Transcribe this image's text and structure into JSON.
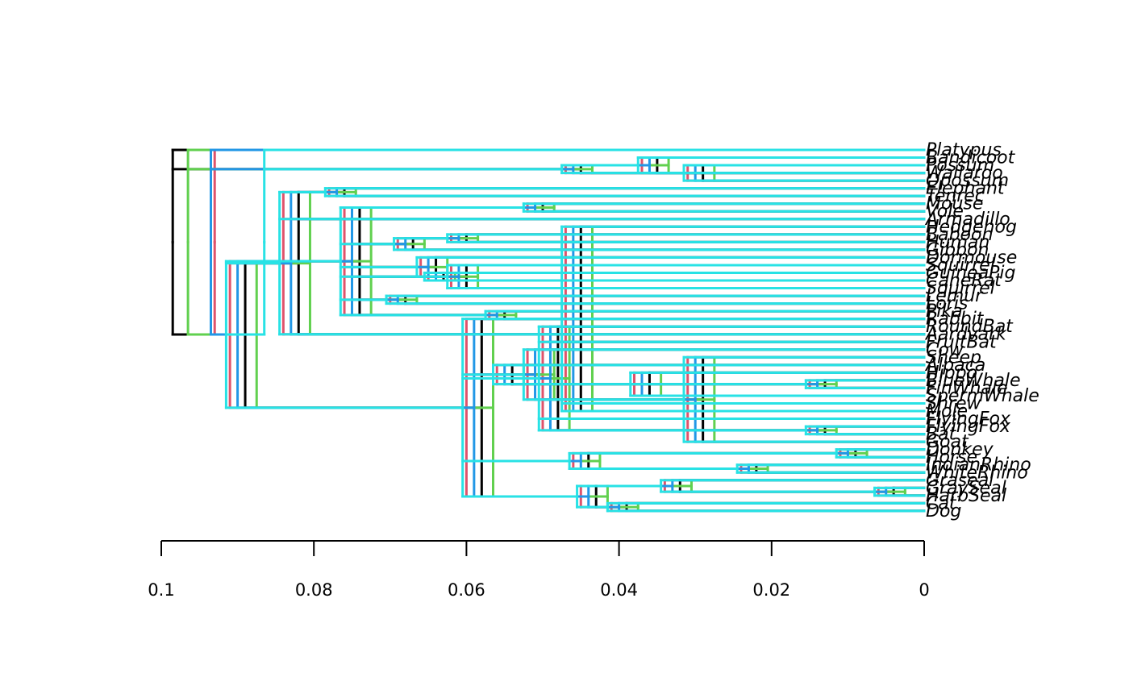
{
  "chart_data": {
    "type": "phylogram-overlay",
    "orientation": "right",
    "xaxis": {
      "domain": [
        0.1,
        0.0
      ],
      "ticks": [
        0.1,
        0.08,
        0.06,
        0.04,
        0.02,
        0
      ],
      "tick_labels": [
        "0.1",
        "0.08",
        "0.06",
        "0.04",
        "0.02",
        "0"
      ]
    },
    "tips": [
      "Platypus",
      "Bandicoot",
      "Possum",
      "Wallaroo",
      "Opossum",
      "Elephant",
      "Tenrec",
      "Mouse",
      "Vole",
      "Armadillo",
      "Hedgehog",
      "Baboon",
      "Human",
      "Gibbon",
      "Dormouse",
      "Squirrel",
      "GuineaPig",
      "CaneRat",
      "Squirrel",
      "Lemur",
      "Loris",
      "Pika",
      "Rabbit",
      "RoundBat",
      "Aardvark",
      "FruitBat",
      "Cow",
      "Sheep",
      "Alpaca",
      "Hippo",
      "BlueWhale",
      "FinWhale",
      "SpermWhale",
      "Shrew",
      "Mole",
      "FlyingFox",
      "FlyingFox",
      "Bat",
      "Goat",
      "Donkey",
      "Horse",
      "IndianRhino",
      "WhiteRhino",
      "Graseal",
      "GraySeal",
      "HarbSeal",
      "Cat",
      "Dog"
    ],
    "trees": [
      {
        "color": "#000000",
        "root_height": 0.0985
      },
      {
        "color": "#DF536B",
        "root_height": 0.093
      },
      {
        "color": "#61D04F",
        "root_height": 0.0965
      },
      {
        "color": "#2297E6",
        "root_height": 0.0935
      },
      {
        "color": "#28E2E5",
        "root_height": 0.0865
      }
    ],
    "nodes": {
      "b_marsupials": 0.045,
      "b_eutheria": 0.089,
      "b_laurasiatheria": 0.058,
      "b_euarchontoglires": 0.074,
      "b_carnivora": 0.043,
      "b_whales": 0.013,
      "b_primates": 0.067,
      "b_rhinos": 0.022,
      "b_seals": 0.004,
      "b_catdog": 0.039
    },
    "legend": "none",
    "grid": false
  }
}
